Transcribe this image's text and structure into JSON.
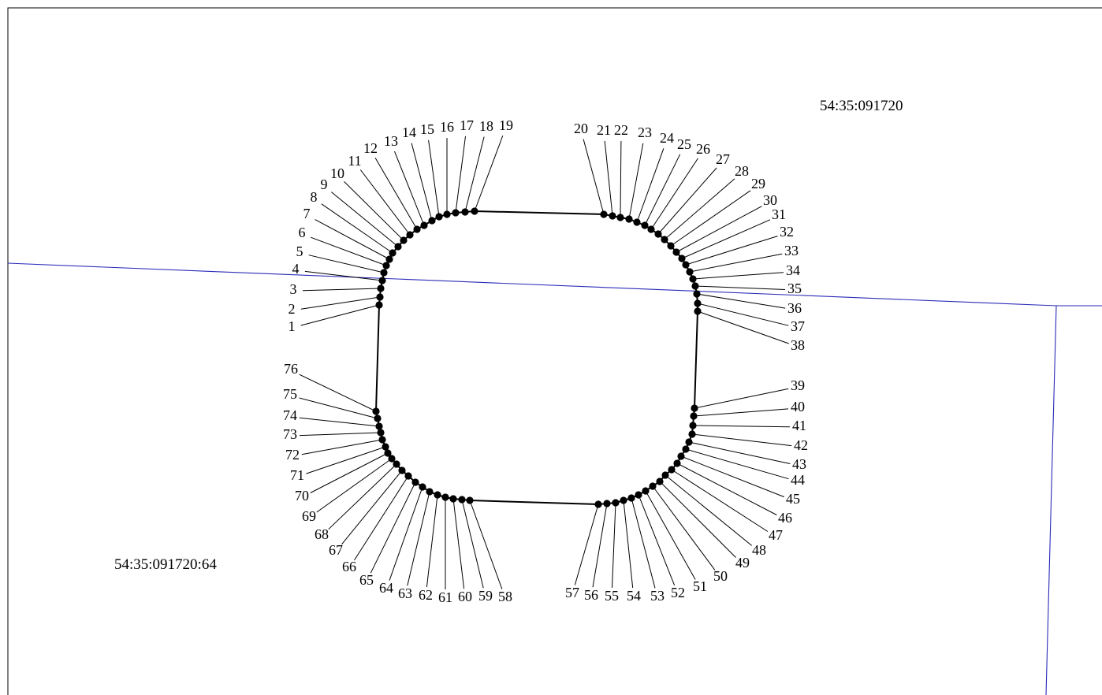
{
  "labels": {
    "quarter": "54:35:091720",
    "parcel": "54:35:091720:64"
  },
  "colors": {
    "boundary": "#2a2ab8",
    "contour": "#000000",
    "background": "#ffffff"
  },
  "points": [
    "1",
    "2",
    "3",
    "4",
    "5",
    "6",
    "7",
    "8",
    "9",
    "10",
    "11",
    "12",
    "13",
    "14",
    "15",
    "16",
    "17",
    "18",
    "19",
    "20",
    "21",
    "22",
    "23",
    "24",
    "25",
    "26",
    "27",
    "28",
    "29",
    "30",
    "31",
    "32",
    "33",
    "34",
    "35",
    "36",
    "37",
    "38",
    "39",
    "40",
    "41",
    "42",
    "43",
    "44",
    "45",
    "46",
    "47",
    "48",
    "49",
    "50",
    "51",
    "52",
    "53",
    "54",
    "55",
    "56",
    "57",
    "58",
    "59",
    "60",
    "61",
    "62",
    "63",
    "64",
    "65",
    "66",
    "67",
    "68",
    "69",
    "70",
    "71",
    "72",
    "73",
    "74",
    "75",
    "76"
  ]
}
